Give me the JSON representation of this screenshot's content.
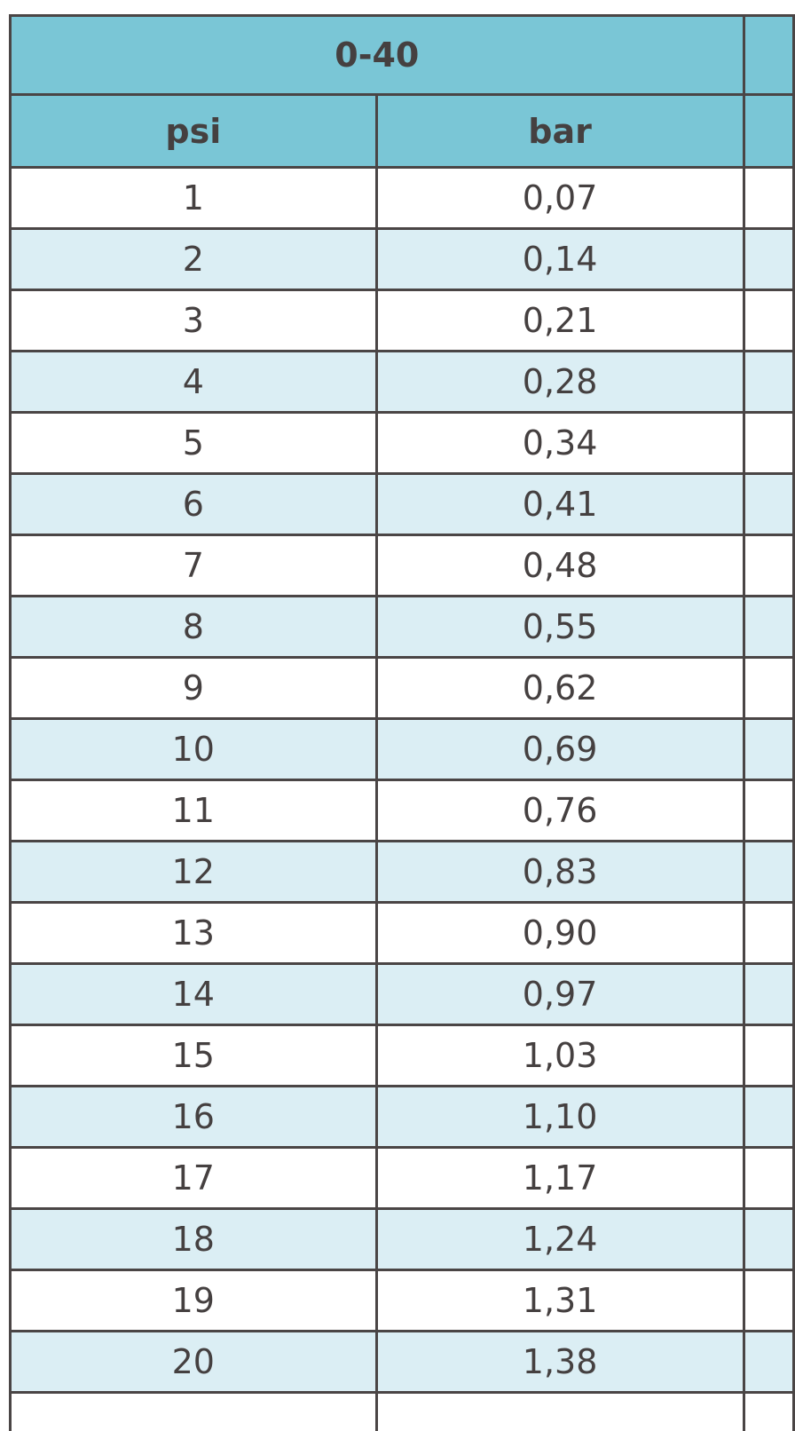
{
  "table": {
    "range_label": "0-40",
    "columns": [
      "psi",
      "bar"
    ],
    "rows": [
      {
        "psi": "1",
        "bar": "0,07"
      },
      {
        "psi": "2",
        "bar": "0,14"
      },
      {
        "psi": "3",
        "bar": "0,21"
      },
      {
        "psi": "4",
        "bar": "0,28"
      },
      {
        "psi": "5",
        "bar": "0,34"
      },
      {
        "psi": "6",
        "bar": "0,41"
      },
      {
        "psi": "7",
        "bar": "0,48"
      },
      {
        "psi": "8",
        "bar": "0,55"
      },
      {
        "psi": "9",
        "bar": "0,62"
      },
      {
        "psi": "10",
        "bar": "0,69"
      },
      {
        "psi": "11",
        "bar": "0,76"
      },
      {
        "psi": "12",
        "bar": "0,83"
      },
      {
        "psi": "13",
        "bar": "0,90"
      },
      {
        "psi": "14",
        "bar": "0,97"
      },
      {
        "psi": "15",
        "bar": "1,03"
      },
      {
        "psi": "16",
        "bar": "1,10"
      },
      {
        "psi": "17",
        "bar": "1,17"
      },
      {
        "psi": "18",
        "bar": "1,24"
      },
      {
        "psi": "19",
        "bar": "1,31"
      },
      {
        "psi": "20",
        "bar": "1,38"
      },
      {
        "psi": "",
        "bar": ""
      }
    ]
  },
  "colors": {
    "header_bg": "#7ac6d6",
    "row_alt_bg": "#dbeef4",
    "border": "#4a4545",
    "text": "#454040"
  }
}
